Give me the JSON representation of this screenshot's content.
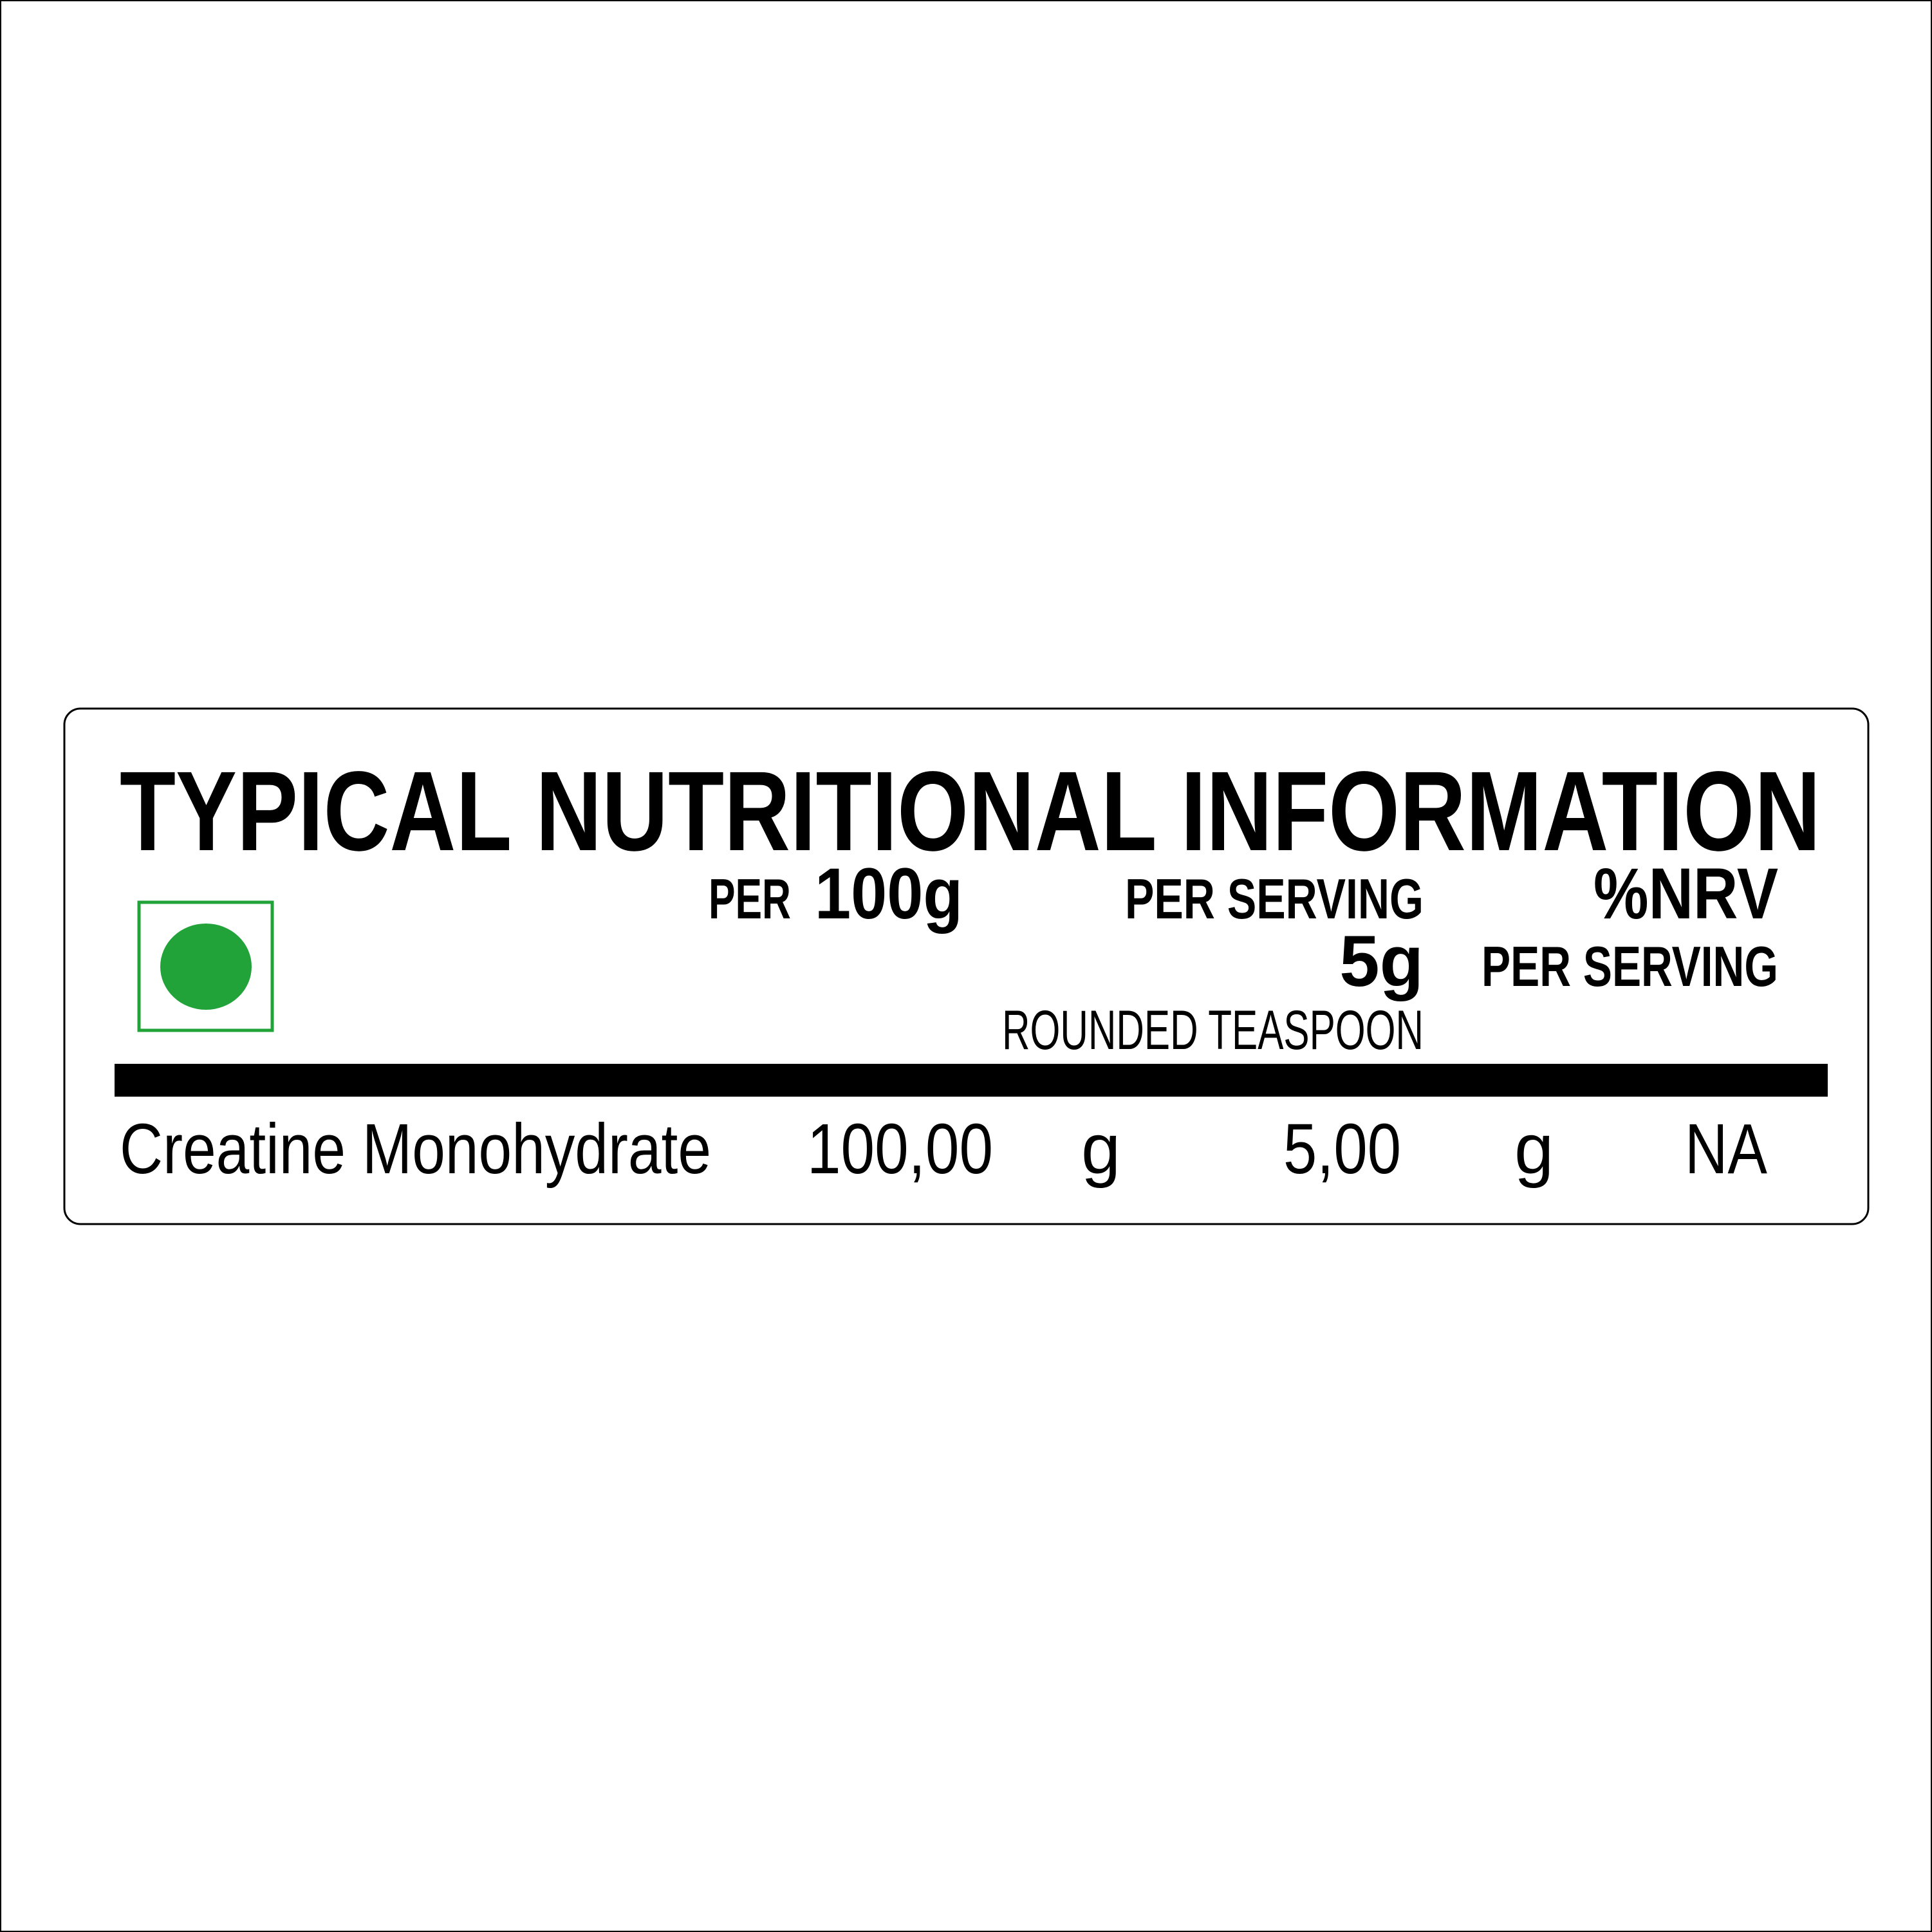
{
  "label": {
    "title": "TYPICAL NUTRITIONAL INFORMATION",
    "veg_mark_color": "#22A33A",
    "headers": {
      "per_100g_prefix": "PER",
      "per_100g_value": "100g",
      "per_serving": "PER SERVING",
      "serving_size": "5g",
      "serving_note": "ROUNDED TEASPOON",
      "nrv": "%NRV",
      "nrv_sub": "PER SERVING"
    },
    "rows": [
      {
        "name": "Creatine Monohydrate",
        "per_100g": "100,00",
        "unit_100g": "g",
        "per_serving": "5,00",
        "unit_serving": "g",
        "nrv": "NA"
      }
    ]
  }
}
